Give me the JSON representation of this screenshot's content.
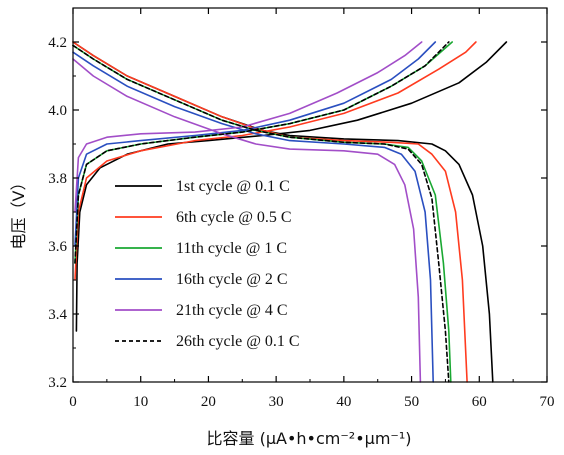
{
  "chart_data": {
    "type": "line",
    "xlabel": "比容量 (μA•h•cm⁻²•μm⁻¹)",
    "ylabel": "电压（V）",
    "xlim": [
      0,
      70
    ],
    "ylim": [
      3.2,
      4.3
    ],
    "xticks": [
      0,
      10,
      20,
      30,
      40,
      50,
      60,
      70
    ],
    "yticks": [
      3.2,
      3.4,
      3.6,
      3.8,
      4.0,
      4.2
    ],
    "legend_position": "center-left",
    "grid": false,
    "series": [
      {
        "name": "1st cycle @ 0.1 C",
        "color": "#000000",
        "dash": false,
        "charge": [
          [
            0.5,
            3.35
          ],
          [
            0.6,
            3.55
          ],
          [
            1,
            3.7
          ],
          [
            2,
            3.78
          ],
          [
            4,
            3.83
          ],
          [
            8,
            3.87
          ],
          [
            14,
            3.9
          ],
          [
            20,
            3.91
          ],
          [
            28,
            3.925
          ],
          [
            35,
            3.94
          ],
          [
            42,
            3.97
          ],
          [
            50,
            4.02
          ],
          [
            57,
            4.08
          ],
          [
            61,
            4.14
          ],
          [
            64,
            4.2
          ]
        ],
        "discharge": [
          [
            0,
            4.2
          ],
          [
            3,
            4.16
          ],
          [
            8,
            4.1
          ],
          [
            15,
            4.04
          ],
          [
            22,
            3.98
          ],
          [
            28,
            3.94
          ],
          [
            32,
            3.925
          ],
          [
            40,
            3.915
          ],
          [
            48,
            3.91
          ],
          [
            53,
            3.9
          ],
          [
            55,
            3.88
          ],
          [
            57,
            3.84
          ],
          [
            59,
            3.75
          ],
          [
            60.5,
            3.6
          ],
          [
            61.5,
            3.4
          ],
          [
            62,
            3.2
          ]
        ]
      },
      {
        "name": "6th cycle @ 0.5 C",
        "color": "#ff3b1f",
        "dash": false,
        "charge": [
          [
            0.3,
            3.5
          ],
          [
            0.8,
            3.7
          ],
          [
            2,
            3.8
          ],
          [
            5,
            3.85
          ],
          [
            10,
            3.88
          ],
          [
            18,
            3.91
          ],
          [
            25,
            3.925
          ],
          [
            32,
            3.95
          ],
          [
            40,
            3.99
          ],
          [
            48,
            4.05
          ],
          [
            54,
            4.12
          ],
          [
            58,
            4.17
          ],
          [
            59.5,
            4.2
          ]
        ],
        "discharge": [
          [
            0,
            4.2
          ],
          [
            3,
            4.16
          ],
          [
            8,
            4.1
          ],
          [
            15,
            4.04
          ],
          [
            22,
            3.98
          ],
          [
            27,
            3.945
          ],
          [
            32,
            3.92
          ],
          [
            40,
            3.91
          ],
          [
            47,
            3.905
          ],
          [
            51,
            3.9
          ],
          [
            53,
            3.87
          ],
          [
            55,
            3.82
          ],
          [
            56.5,
            3.7
          ],
          [
            57.5,
            3.5
          ],
          [
            58.2,
            3.2
          ]
        ]
      },
      {
        "name": "11th cycle @ 1 C",
        "color": "#1aa832",
        "dash": false,
        "charge": [
          [
            0.3,
            3.55
          ],
          [
            0.8,
            3.75
          ],
          [
            2,
            3.84
          ],
          [
            5,
            3.88
          ],
          [
            10,
            3.9
          ],
          [
            18,
            3.92
          ],
          [
            25,
            3.935
          ],
          [
            32,
            3.96
          ],
          [
            40,
            4.0
          ],
          [
            47,
            4.07
          ],
          [
            52,
            4.13
          ],
          [
            56,
            4.2
          ]
        ],
        "discharge": [
          [
            0,
            4.19
          ],
          [
            3,
            4.15
          ],
          [
            8,
            4.09
          ],
          [
            15,
            4.03
          ],
          [
            22,
            3.97
          ],
          [
            27,
            3.94
          ],
          [
            32,
            3.92
          ],
          [
            40,
            3.905
          ],
          [
            46,
            3.9
          ],
          [
            49.5,
            3.89
          ],
          [
            51.5,
            3.85
          ],
          [
            53.5,
            3.75
          ],
          [
            54.7,
            3.55
          ],
          [
            55.5,
            3.35
          ],
          [
            55.8,
            3.2
          ]
        ]
      },
      {
        "name": "16th cycle @ 2 C",
        "color": "#2a4fc0",
        "dash": false,
        "charge": [
          [
            0.3,
            3.6
          ],
          [
            0.8,
            3.8
          ],
          [
            2,
            3.87
          ],
          [
            5,
            3.9
          ],
          [
            10,
            3.91
          ],
          [
            18,
            3.925
          ],
          [
            25,
            3.94
          ],
          [
            32,
            3.97
          ],
          [
            40,
            4.02
          ],
          [
            47,
            4.09
          ],
          [
            51,
            4.15
          ],
          [
            53.5,
            4.2
          ]
        ],
        "discharge": [
          [
            0,
            4.17
          ],
          [
            3,
            4.13
          ],
          [
            8,
            4.07
          ],
          [
            15,
            4.01
          ],
          [
            22,
            3.96
          ],
          [
            27,
            3.93
          ],
          [
            32,
            3.91
          ],
          [
            40,
            3.9
          ],
          [
            46,
            3.89
          ],
          [
            48.5,
            3.87
          ],
          [
            50.5,
            3.82
          ],
          [
            52,
            3.7
          ],
          [
            52.8,
            3.5
          ],
          [
            53.2,
            3.2
          ]
        ]
      },
      {
        "name": "21th cycle @ 4 C",
        "color": "#a24ec8",
        "dash": false,
        "charge": [
          [
            0.3,
            3.7
          ],
          [
            0.8,
            3.86
          ],
          [
            2,
            3.9
          ],
          [
            5,
            3.92
          ],
          [
            10,
            3.93
          ],
          [
            18,
            3.935
          ],
          [
            25,
            3.95
          ],
          [
            32,
            3.99
          ],
          [
            39,
            4.05
          ],
          [
            45,
            4.11
          ],
          [
            49,
            4.16
          ],
          [
            51.5,
            4.2
          ]
        ],
        "discharge": [
          [
            0,
            4.15
          ],
          [
            3,
            4.1
          ],
          [
            8,
            4.04
          ],
          [
            15,
            3.98
          ],
          [
            22,
            3.93
          ],
          [
            27,
            3.9
          ],
          [
            32,
            3.885
          ],
          [
            40,
            3.88
          ],
          [
            45,
            3.87
          ],
          [
            47.5,
            3.84
          ],
          [
            49,
            3.78
          ],
          [
            50.3,
            3.65
          ],
          [
            51,
            3.45
          ],
          [
            51.3,
            3.2
          ]
        ]
      },
      {
        "name": "26th cycle @ 0.1 C",
        "color": "#000000",
        "dash": true,
        "charge": [
          [
            0.3,
            3.55
          ],
          [
            0.8,
            3.75
          ],
          [
            2,
            3.84
          ],
          [
            5,
            3.88
          ],
          [
            10,
            3.9
          ],
          [
            18,
            3.92
          ],
          [
            25,
            3.935
          ],
          [
            32,
            3.96
          ],
          [
            40,
            4.0
          ],
          [
            47,
            4.07
          ],
          [
            52,
            4.13
          ],
          [
            55.5,
            4.2
          ]
        ],
        "discharge": [
          [
            0,
            4.19
          ],
          [
            3,
            4.15
          ],
          [
            8,
            4.09
          ],
          [
            15,
            4.03
          ],
          [
            22,
            3.97
          ],
          [
            27,
            3.94
          ],
          [
            32,
            3.92
          ],
          [
            40,
            3.905
          ],
          [
            46,
            3.9
          ],
          [
            49.5,
            3.885
          ],
          [
            51.5,
            3.84
          ],
          [
            53,
            3.74
          ],
          [
            54,
            3.55
          ],
          [
            55,
            3.35
          ],
          [
            55.5,
            3.2
          ]
        ]
      }
    ]
  }
}
